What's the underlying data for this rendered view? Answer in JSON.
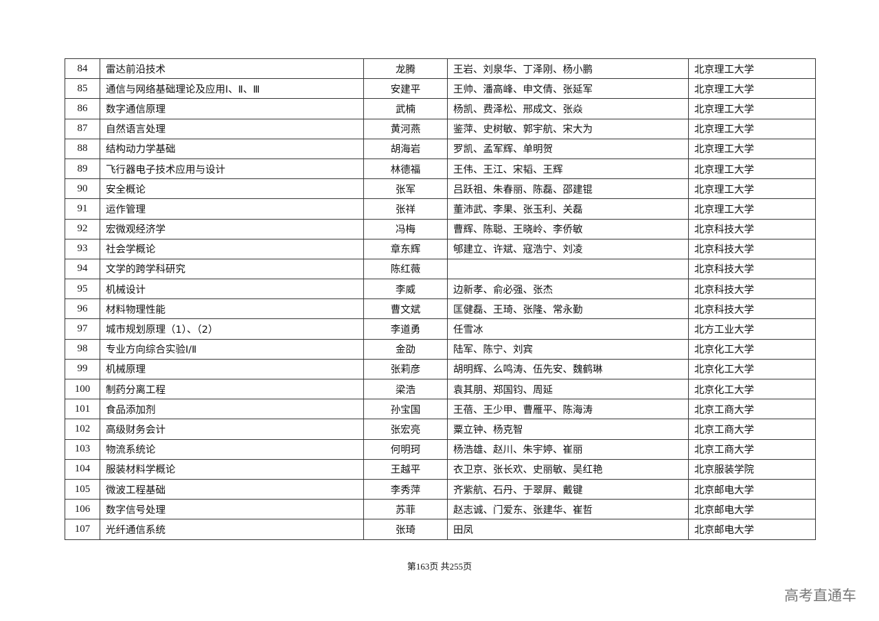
{
  "table": {
    "rows": [
      {
        "no": "84",
        "course": "雷达前沿技术",
        "lead": "龙腾",
        "team": "王岩、刘泉华、丁泽刚、杨小鹏",
        "school": "北京理工大学"
      },
      {
        "no": "85",
        "course": "通信与网络基础理论及应用Ⅰ、Ⅱ、Ⅲ",
        "lead": "安建平",
        "team": "王帅、潘高峰、申文倩、张延军",
        "school": "北京理工大学"
      },
      {
        "no": "86",
        "course": "数字通信原理",
        "lead": "武楠",
        "team": "杨凯、费泽松、邢成文、张焱",
        "school": "北京理工大学"
      },
      {
        "no": "87",
        "course": "自然语言处理",
        "lead": "黄河燕",
        "team": "鉴萍、史树敏、郭宇航、宋大为",
        "school": "北京理工大学"
      },
      {
        "no": "88",
        "course": "结构动力学基础",
        "lead": "胡海岩",
        "team": "罗凯、孟军辉、单明贺",
        "school": "北京理工大学"
      },
      {
        "no": "89",
        "course": "飞行器电子技术应用与设计",
        "lead": "林德福",
        "team": "王伟、王江、宋韬、王辉",
        "school": "北京理工大学"
      },
      {
        "no": "90",
        "course": "安全概论",
        "lead": "张军",
        "team": "吕跃祖、朱春丽、陈磊、邵建锟",
        "school": "北京理工大学"
      },
      {
        "no": "91",
        "course": "运作管理",
        "lead": "张祥",
        "team": "董沛武、李果、张玉利、关磊",
        "school": "北京理工大学"
      },
      {
        "no": "92",
        "course": "宏微观经济学",
        "lead": "冯梅",
        "team": "曹辉、陈聪、王晓岭、李侨敏",
        "school": "北京科技大学"
      },
      {
        "no": "93",
        "course": "社会学概论",
        "lead": "章东辉",
        "team": "郇建立、许斌、寇浩宁、刘凌",
        "school": "北京科技大学"
      },
      {
        "no": "94",
        "course": "文学的跨学科研究",
        "lead": "陈红薇",
        "team": "",
        "school": "北京科技大学"
      },
      {
        "no": "95",
        "course": "机械设计",
        "lead": "李威",
        "team": "边新孝、俞必强、张杰",
        "school": "北京科技大学"
      },
      {
        "no": "96",
        "course": "材料物理性能",
        "lead": "曹文斌",
        "team": "匡健磊、王琦、张隆、常永勤",
        "school": "北京科技大学"
      },
      {
        "no": "97",
        "course": "城市规划原理（1）、（2）",
        "lead": "李道勇",
        "team": "任雪冰",
        "school": "北方工业大学"
      },
      {
        "no": "98",
        "course": "专业方向综合实验Ⅰ/Ⅱ",
        "lead": "金劭",
        "team": "陆军、陈宁、刘宾",
        "school": "北京化工大学"
      },
      {
        "no": "99",
        "course": "机械原理",
        "lead": "张莉彦",
        "team": "胡明辉、么鸣涛、伍先安、魏鹤琳",
        "school": "北京化工大学"
      },
      {
        "no": "100",
        "course": "制药分离工程",
        "lead": "梁浩",
        "team": "袁其朋、郑国钧、周延",
        "school": "北京化工大学"
      },
      {
        "no": "101",
        "course": "食品添加剂",
        "lead": "孙宝国",
        "team": "王蓓、王少甲、曹雁平、陈海涛",
        "school": "北京工商大学"
      },
      {
        "no": "102",
        "course": "高级财务会计",
        "lead": "张宏亮",
        "team": "粟立钟、杨克智",
        "school": "北京工商大学"
      },
      {
        "no": "103",
        "course": "物流系统论",
        "lead": "何明珂",
        "team": "杨浩雄、赵川、朱宇婷、崔丽",
        "school": "北京工商大学"
      },
      {
        "no": "104",
        "course": "服装材料学概论",
        "lead": "王越平",
        "team": "衣卫京、张长欢、史丽敏、吴红艳",
        "school": "北京服装学院"
      },
      {
        "no": "105",
        "course": "微波工程基础",
        "lead": "李秀萍",
        "team": "齐紫航、石丹、于翠屏、戴键",
        "school": "北京邮电大学"
      },
      {
        "no": "106",
        "course": "数字信号处理",
        "lead": "苏菲",
        "team": "赵志诚、门爱东、张建华、崔哲",
        "school": "北京邮电大学"
      },
      {
        "no": "107",
        "course": "光纤通信系统",
        "lead": "张琦",
        "team": "田凤",
        "school": "北京邮电大学"
      }
    ]
  },
  "footer": {
    "page_label": "第163页  共255页"
  },
  "watermark": {
    "text": "高考直通车"
  }
}
